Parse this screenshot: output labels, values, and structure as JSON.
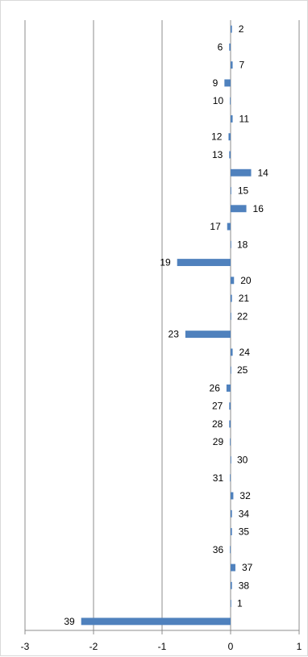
{
  "chart_data": {
    "type": "bar",
    "orientation": "horizontal",
    "grid": true,
    "xlim": [
      -3,
      1
    ],
    "x_ticks": [
      "-3",
      "-2",
      "-1",
      "0",
      "1"
    ],
    "bar_color": "#4F81BD",
    "categories": [
      "2",
      "6",
      "7",
      "9",
      "10",
      "11",
      "12",
      "13",
      "14",
      "15",
      "16",
      "17",
      "18",
      "19",
      "20",
      "21",
      "22",
      "23",
      "24",
      "25",
      "26",
      "27",
      "28",
      "29",
      "30",
      "31",
      "32",
      "34",
      "35",
      "36",
      "37",
      "38",
      "1",
      "39"
    ],
    "values": [
      0.02,
      -0.02,
      0.03,
      -0.09,
      -0.01,
      0.03,
      -0.03,
      -0.02,
      0.3,
      0.01,
      0.23,
      -0.05,
      0.0,
      -0.78,
      0.05,
      0.02,
      0.0,
      -0.66,
      0.03,
      0.0,
      -0.06,
      -0.02,
      -0.02,
      -0.01,
      0.0,
      -0.01,
      0.04,
      0.02,
      0.02,
      -0.01,
      0.07,
      0.02,
      0.0,
      -2.18
    ]
  }
}
